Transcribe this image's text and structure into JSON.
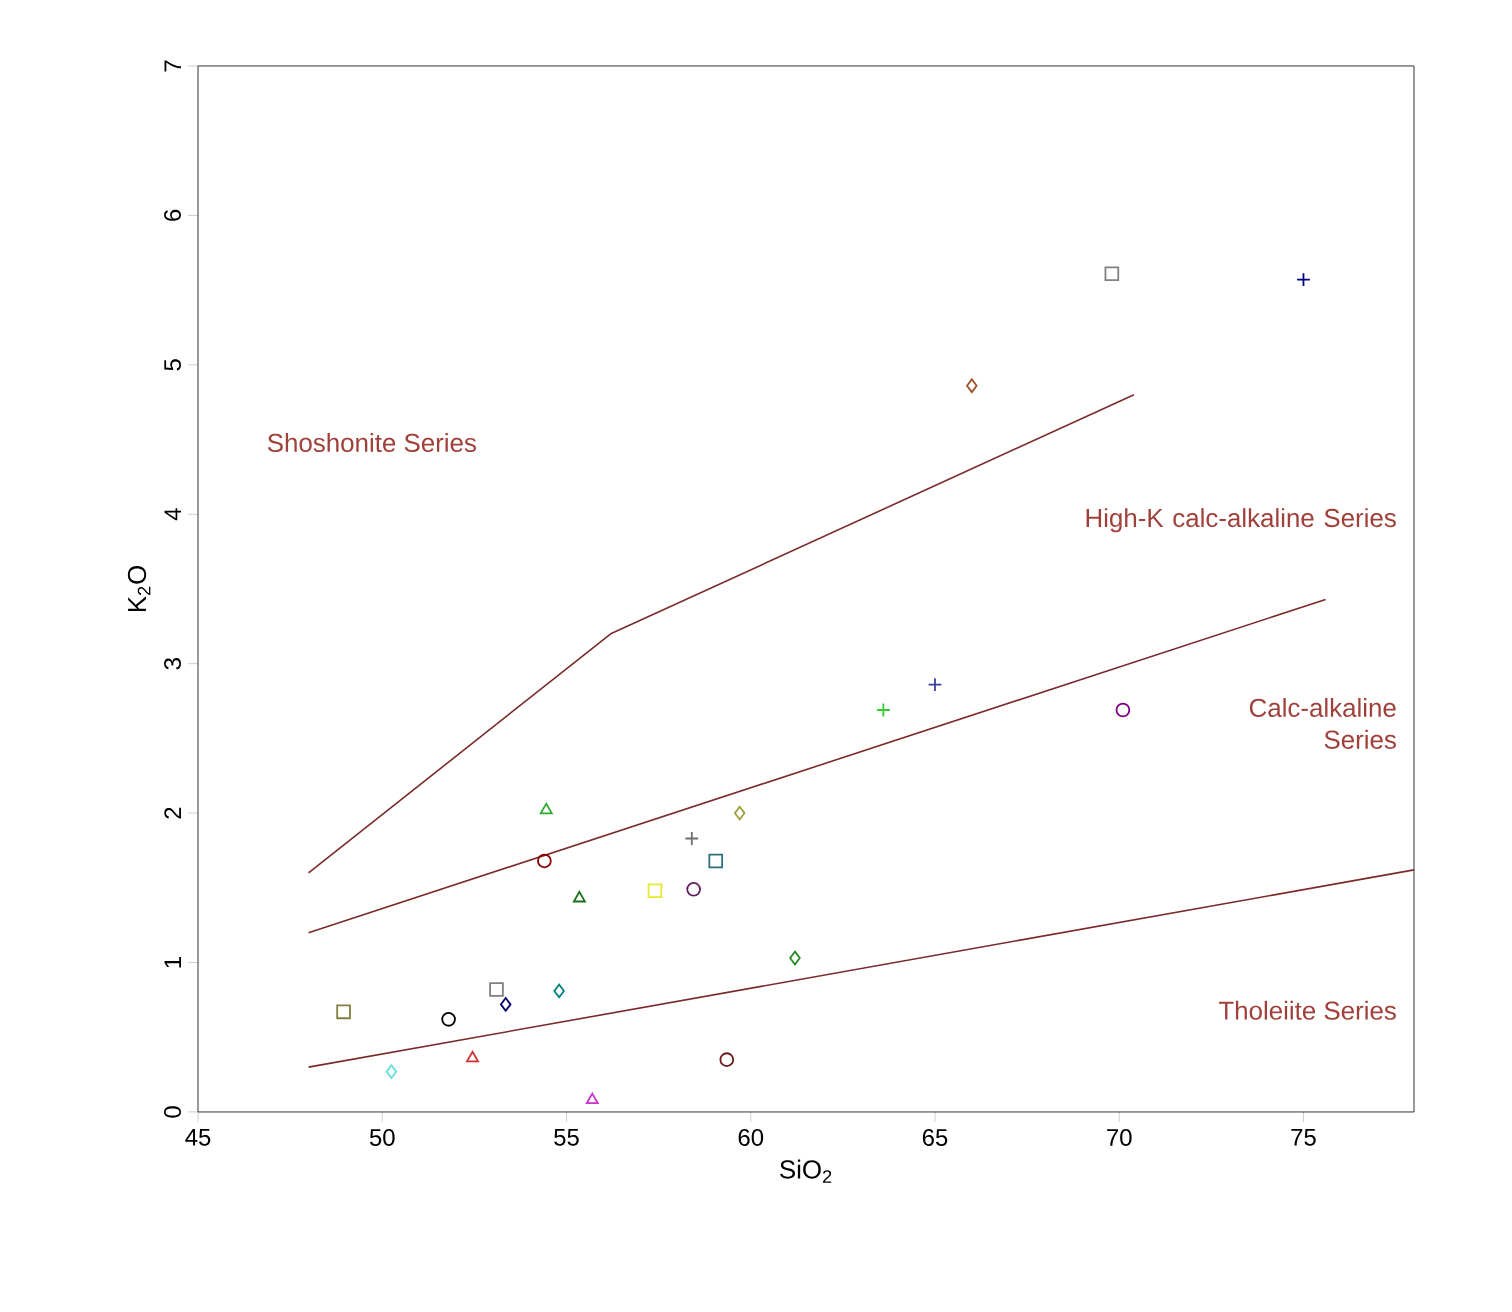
{
  "chart_data": {
    "type": "scatter",
    "xlabel": "SiO$_{2}$",
    "ylabel": "K$_{2}$O",
    "xlim": [
      45,
      78
    ],
    "ylim": [
      0,
      7
    ],
    "xticks": [
      45,
      50,
      55,
      60,
      65,
      70,
      75
    ],
    "yticks": [
      0,
      1,
      2,
      3,
      4,
      5,
      6,
      7
    ],
    "annotations": [
      "Shoshonite Series",
      "High-K calc-alkaline Series",
      "Calc-alkaline Series",
      "Tholeiite Series"
    ],
    "series": [
      {
        "x": [
          69.8
        ],
        "values": [
          5.61
        ],
        "color": "#808080",
        "marker": "square"
      },
      {
        "x": [
          75.0
        ],
        "values": [
          5.57
        ],
        "color": "#000080",
        "marker": "cross"
      },
      {
        "x": [
          66.0
        ],
        "values": [
          4.86
        ],
        "color": "#a0522d",
        "marker": "diamond"
      },
      {
        "x": [
          63.6
        ],
        "values": [
          2.69
        ],
        "color": "#33cc33",
        "marker": "cross"
      },
      {
        "x": [
          65.0
        ],
        "values": [
          2.86
        ],
        "color": "#4040a0",
        "marker": "cross"
      },
      {
        "x": [
          70.1
        ],
        "values": [
          2.69
        ],
        "color": "#800080",
        "marker": "circle"
      },
      {
        "x": [
          54.45
        ],
        "values": [
          2.02
        ],
        "color": "#33aa33",
        "marker": "triangle"
      },
      {
        "x": [
          59.7
        ],
        "values": [
          2.0
        ],
        "color": "#a0a040",
        "marker": "diamond"
      },
      {
        "x": [
          58.4
        ],
        "values": [
          1.83
        ],
        "color": "#707070",
        "marker": "cross"
      },
      {
        "x": [
          54.4
        ],
        "values": [
          1.68
        ],
        "color": "#8b0000",
        "marker": "circle"
      },
      {
        "x": [
          59.05
        ],
        "values": [
          1.68
        ],
        "color": "#2f6f7f",
        "marker": "square"
      },
      {
        "x": [
          55.35
        ],
        "values": [
          1.43
        ],
        "color": "#1a6e1a",
        "marker": "triangle"
      },
      {
        "x": [
          57.4
        ],
        "values": [
          1.48
        ],
        "color": "#e8e830",
        "marker": "square"
      },
      {
        "x": [
          58.45
        ],
        "values": [
          1.49
        ],
        "color": "#602060",
        "marker": "circle"
      },
      {
        "x": [
          61.2
        ],
        "values": [
          1.03
        ],
        "color": "#228b22",
        "marker": "diamond"
      },
      {
        "x": [
          48.95
        ],
        "values": [
          0.67
        ],
        "color": "#808040",
        "marker": "square"
      },
      {
        "x": [
          51.8
        ],
        "values": [
          0.62
        ],
        "color": "#000000",
        "marker": "circle"
      },
      {
        "x": [
          53.1
        ],
        "values": [
          0.82
        ],
        "color": "#808080",
        "marker": "square"
      },
      {
        "x": [
          53.35
        ],
        "values": [
          0.72
        ],
        "color": "#000066",
        "marker": "diamond"
      },
      {
        "x": [
          54.8
        ],
        "values": [
          0.81
        ],
        "color": "#008080",
        "marker": "diamond"
      },
      {
        "x": [
          50.25
        ],
        "values": [
          0.27
        ],
        "color": "#66dddd",
        "marker": "diamond"
      },
      {
        "x": [
          52.45
        ],
        "values": [
          0.36
        ],
        "color": "#cc3333",
        "marker": "triangle"
      },
      {
        "x": [
          55.7
        ],
        "values": [
          0.08
        ],
        "color": "#cc33cc",
        "marker": "triangle"
      },
      {
        "x": [
          59.35
        ],
        "values": [
          0.35
        ],
        "color": "#6b1a1a",
        "marker": "circle"
      },
      {
        "type": "line",
        "x": [
          48,
          56.2,
          70.4
        ],
        "values": [
          1.6,
          3.2,
          4.8
        ],
        "color": "#7a2a2a"
      },
      {
        "type": "line",
        "x": [
          48,
          75.6
        ],
        "values": [
          1.2,
          3.43
        ],
        "color": "#7a2a2a"
      },
      {
        "type": "line",
        "x": [
          48,
          78
        ],
        "values": [
          0.3,
          1.62
        ],
        "color": "#7a2a2a"
      }
    ]
  }
}
